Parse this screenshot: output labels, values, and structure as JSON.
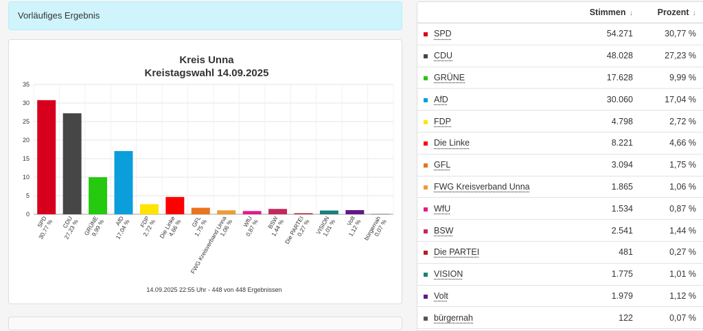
{
  "notice": {
    "text": "Vorläufiges Ergebnis"
  },
  "chart": {
    "title_line1": "Kreis Unna",
    "title_line2": "Kreistagswahl 14.09.2025",
    "footer": "14.09.2025 22:55 Uhr - 448 von 448 Ergebnissen"
  },
  "chart_data": {
    "type": "bar",
    "title": "Kreis Unna Kreistagswahl 14.09.2025",
    "xlabel": "",
    "ylabel": "",
    "ylim": [
      0,
      35
    ],
    "yticks": [
      0,
      5,
      10,
      15,
      20,
      25,
      30,
      35
    ],
    "grid": true,
    "legend": "none",
    "categories": [
      "SPD",
      "CDU",
      "GRÜNE",
      "AfD",
      "FDP",
      "Die Linke",
      "GFL",
      "FWG Kreisverband Unna",
      "WfU",
      "BSW",
      "Die PARTEI",
      "VISION",
      "Volt",
      "bürgernah"
    ],
    "value_labels": [
      "30,77 %",
      "27,23 %",
      "9,99 %",
      "17,04 %",
      "2,72 %",
      "4,66 %",
      "1,75 %",
      "1,06 %",
      "0,87 %",
      "1,44 %",
      "0,27 %",
      "1,01 %",
      "1,12 %",
      "0,07 %"
    ],
    "values": [
      30.77,
      27.23,
      9.99,
      17.04,
      2.72,
      4.66,
      1.75,
      1.06,
      0.87,
      1.44,
      0.27,
      1.01,
      1.12,
      0.07
    ],
    "colors": [
      "#d6001c",
      "#464646",
      "#25c90f",
      "#0a9fdb",
      "#ffe400",
      "#ff0000",
      "#e8741e",
      "#f09a37",
      "#e5198c",
      "#c22a5b",
      "#b21f29",
      "#1a7f77",
      "#631886",
      "#555555"
    ]
  },
  "table": {
    "headers": {
      "votes": "Stimmen",
      "percent": "Prozent",
      "sort_icon": "↓"
    },
    "rows": [
      {
        "party": "SPD",
        "votes": "54.271",
        "percent": "30,77 %",
        "color": "#d6001c"
      },
      {
        "party": "CDU",
        "votes": "48.028",
        "percent": "27,23 %",
        "color": "#464646"
      },
      {
        "party": "GRÜNE",
        "votes": "17.628",
        "percent": "9,99 %",
        "color": "#25c90f"
      },
      {
        "party": "AfD",
        "votes": "30.060",
        "percent": "17,04 %",
        "color": "#0a9fdb"
      },
      {
        "party": "FDP",
        "votes": "4.798",
        "percent": "2,72 %",
        "color": "#ffe400"
      },
      {
        "party": "Die Linke",
        "votes": "8.221",
        "percent": "4,66 %",
        "color": "#ff0000"
      },
      {
        "party": "GFL",
        "votes": "3.094",
        "percent": "1,75 %",
        "color": "#e8741e"
      },
      {
        "party": "FWG Kreisverband Unna",
        "votes": "1.865",
        "percent": "1,06 %",
        "color": "#f09a37"
      },
      {
        "party": "WfU",
        "votes": "1.534",
        "percent": "0,87 %",
        "color": "#e5198c"
      },
      {
        "party": "BSW",
        "votes": "2.541",
        "percent": "1,44 %",
        "color": "#c22a5b"
      },
      {
        "party": "Die PARTEI",
        "votes": "481",
        "percent": "0,27 %",
        "color": "#b21f29"
      },
      {
        "party": "VISION",
        "votes": "1.775",
        "percent": "1,01 %",
        "color": "#1a7f77"
      },
      {
        "party": "Volt",
        "votes": "1.979",
        "percent": "1,12 %",
        "color": "#631886"
      },
      {
        "party": "bürgernah",
        "votes": "122",
        "percent": "0,07 %",
        "color": "#555555"
      }
    ]
  }
}
